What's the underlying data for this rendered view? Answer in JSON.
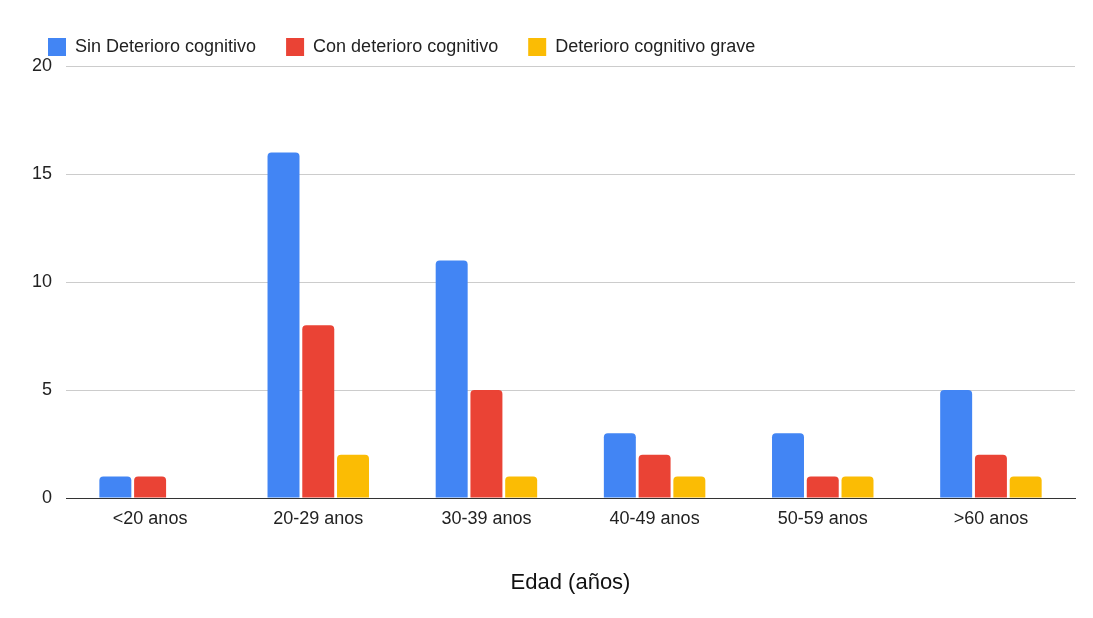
{
  "chart_data": {
    "type": "bar",
    "xlabel": "Edad (años)",
    "categories": [
      "<20 anos",
      "20-29 anos",
      "30-39 anos",
      "40-49 anos",
      "50-59 anos",
      ">60 anos"
    ],
    "series": [
      {
        "name": "Sin Deterioro cognitivo",
        "color": "#4285f4",
        "values": [
          1,
          16,
          11,
          3,
          3,
          5
        ]
      },
      {
        "name": "Con deterioro cognitivo",
        "color": "#ea4335",
        "values": [
          1,
          8,
          5,
          2,
          1,
          2
        ]
      },
      {
        "name": "Deterioro cognitivo grave",
        "color": "#fbbc04",
        "values": [
          0,
          2,
          1,
          1,
          1,
          1
        ]
      }
    ],
    "ylim": [
      0,
      20
    ],
    "yticks": [
      0,
      5,
      10,
      15,
      20
    ],
    "grid": "y",
    "legend": "top left"
  }
}
